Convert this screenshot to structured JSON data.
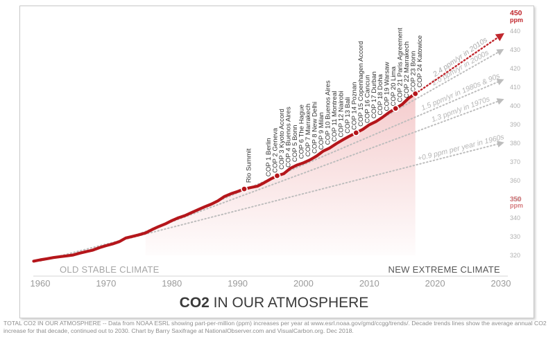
{
  "chart_data": {
    "type": "line",
    "title_bold": "CO2",
    "title_rest": " IN OUR ATMOSPHERE",
    "xlim": [
      1960,
      2030
    ],
    "ylim": [
      315,
      450
    ],
    "x_ticks": [
      1960,
      1970,
      1980,
      1990,
      2000,
      2010,
      2020,
      2030
    ],
    "y_ticks": [
      320,
      330,
      340,
      350,
      360,
      370,
      380,
      390,
      400,
      410,
      420,
      430,
      440
    ],
    "y_top_label": {
      "value": "450",
      "unit": "ppm"
    },
    "y_mid_label": {
      "value": "350",
      "unit": "ppm"
    },
    "series": [
      {
        "values": [
          [
            1959,
            316.9
          ],
          [
            1960,
            317.6
          ],
          [
            1961,
            318.2
          ],
          [
            1962,
            318.8
          ],
          [
            1963,
            319.3
          ],
          [
            1964,
            319.7
          ],
          [
            1965,
            320.2
          ],
          [
            1966,
            321.2
          ],
          [
            1967,
            322.0
          ],
          [
            1968,
            322.8
          ],
          [
            1969,
            324.1
          ],
          [
            1970,
            325.2
          ],
          [
            1971,
            326.1
          ],
          [
            1972,
            327.3
          ],
          [
            1973,
            329.3
          ],
          [
            1974,
            330.1
          ],
          [
            1975,
            331.0
          ],
          [
            1976,
            332.0
          ],
          [
            1977,
            333.8
          ],
          [
            1978,
            335.4
          ],
          [
            1979,
            336.8
          ],
          [
            1980,
            338.6
          ],
          [
            1981,
            340.1
          ],
          [
            1982,
            341.3
          ],
          [
            1983,
            342.9
          ],
          [
            1984,
            344.5
          ],
          [
            1985,
            346.0
          ],
          [
            1986,
            347.4
          ],
          [
            1987,
            349.2
          ],
          [
            1988,
            351.5
          ],
          [
            1989,
            353.0
          ],
          [
            1990,
            354.2
          ],
          [
            1991,
            355.5
          ],
          [
            1992,
            356.3
          ],
          [
            1993,
            357.0
          ],
          [
            1994,
            358.8
          ],
          [
            1995,
            360.8
          ],
          [
            1996,
            362.6
          ],
          [
            1997,
            363.7
          ],
          [
            1998,
            366.6
          ],
          [
            1999,
            368.3
          ],
          [
            2000,
            369.5
          ],
          [
            2001,
            371.1
          ],
          [
            2002,
            373.2
          ],
          [
            2003,
            375.8
          ],
          [
            2004,
            377.5
          ],
          [
            2005,
            379.8
          ],
          [
            2006,
            381.9
          ],
          [
            2007,
            383.8
          ],
          [
            2008,
            385.6
          ],
          [
            2009,
            387.4
          ],
          [
            2010,
            389.9
          ],
          [
            2011,
            391.6
          ],
          [
            2012,
            393.9
          ],
          [
            2013,
            396.5
          ],
          [
            2014,
            398.6
          ],
          [
            2015,
            400.8
          ],
          [
            2016,
            404.2
          ],
          [
            2017,
            406.5
          ]
        ]
      }
    ],
    "trends": [
      {
        "label": "+0.9 ppm per year in 1960s",
        "rate": 0.9,
        "start": [
          1960,
          317.0
        ],
        "end_year": 2030
      },
      {
        "label": "1.3 ppm/y in 1970s",
        "rate": 1.3,
        "start": [
          1970,
          325.0
        ],
        "end_year": 2030
      },
      {
        "label": "1.5 ppm/yr in 1980s & 90s",
        "rate": 1.5,
        "start": [
          1980,
          338.5
        ],
        "end_year": 2030
      },
      {
        "label": "2.0 ppm/yr in 2000s",
        "rate": 2.0,
        "start": [
          2000,
          369.5
        ],
        "end_year": 2030
      },
      {
        "label": "2.4 ppm/yr in 2010s",
        "rate": 2.4,
        "start": [
          2017,
          406.5
        ],
        "end_year": 2030
      }
    ],
    "events": [
      {
        "year": 1992,
        "label": "Rio Summit",
        "marker": true
      },
      {
        "year": 1995,
        "label": "COP 1 Berlin"
      },
      {
        "year": 1996,
        "label": "COP 2 Geneva"
      },
      {
        "year": 1997,
        "label": "COP 3 Kyoto Accord",
        "marker": true
      },
      {
        "year": 1998,
        "label": "COP 4 Buenos Aires"
      },
      {
        "year": 1999,
        "label": "COP 5 Bonn"
      },
      {
        "year": 2000,
        "label": "COP 6 The Hague"
      },
      {
        "year": 2001,
        "label": "COP 7 Marrakech"
      },
      {
        "year": 2002,
        "label": "COP 8 New Delhi"
      },
      {
        "year": 2003,
        "label": "COP 9 Milan"
      },
      {
        "year": 2004,
        "label": "COP 10 Buenos Aires"
      },
      {
        "year": 2005,
        "label": "COP 11 Montreal"
      },
      {
        "year": 2006,
        "label": "COP 12 Nairobi"
      },
      {
        "year": 2007,
        "label": "COP 13 Bali"
      },
      {
        "year": 2008,
        "label": "COP 14 Poznan"
      },
      {
        "year": 2009,
        "label": "COP 15 Copenhagen Accord",
        "marker": true
      },
      {
        "year": 2010,
        "label": "COP 16 Cancun"
      },
      {
        "year": 2011,
        "label": "COP 17 Durban"
      },
      {
        "year": 2012,
        "label": "COP 18 Doha"
      },
      {
        "year": 2013,
        "label": "COP 19 Warsaw"
      },
      {
        "year": 2014,
        "label": "COP 20 Lima"
      },
      {
        "year": 2015,
        "label": "COP 21 Paris Agreement",
        "marker": true
      },
      {
        "year": 2016,
        "label": "COP 22 Marrakech"
      },
      {
        "year": 2017,
        "label": "COP 23 Bonn"
      },
      {
        "year": 2018,
        "label": "COP 24 Katowice",
        "marker": true
      }
    ],
    "region_left_label": "OLD STABLE CLIMATE",
    "region_right_label": "NEW EXTREME CLIMATE",
    "colors": {
      "line": "#b5161b",
      "accent": "#c0272d",
      "fill": "#f4c9ca",
      "trend": "#bdbdbd",
      "axis_text": "#9a9a9a"
    }
  },
  "caption": "TOTAL CO2 IN OUR ATMOSPHERE -- Data from NOAA ESRL showing part-per-million (ppm) increases per year at www.esrl.noaa.gov/gmd/ccgg/trends/. Decade trends lines show the average annual CO2 increase for that decade, continued out to 2030. Chart by Barry Saxifrage at NationalObserver.com and VisualCarbon.org. Dec 2018."
}
